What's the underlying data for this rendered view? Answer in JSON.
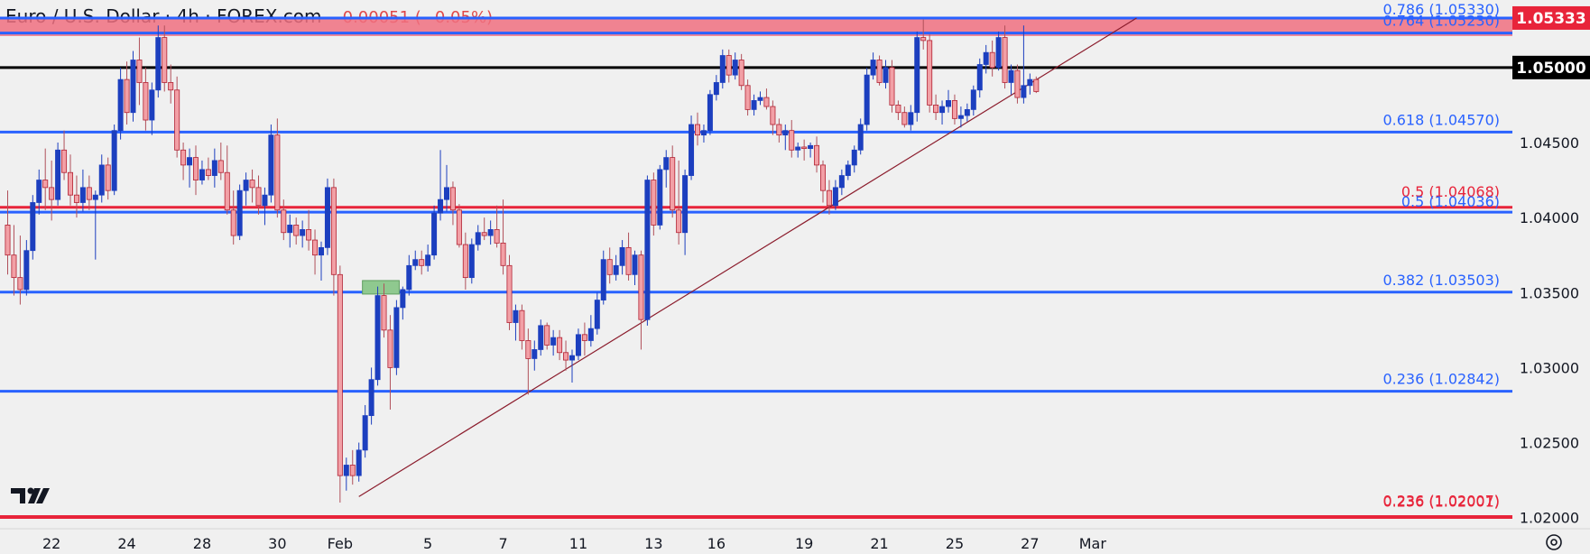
{
  "header": {
    "symbol": "Euro / U.S. Dollar · 4h · FOREX.com",
    "change": "−0.00051 (−0.05%)"
  },
  "colors": {
    "background": "#f0f0f0",
    "up": "#1c3fbf",
    "down": "#f2a0a6",
    "downBorder": "#b22233",
    "fib": "#2962ff",
    "red": "#e8243a",
    "black": "#000000",
    "trend": "#8b1c2c",
    "zone": "#8fc98f"
  },
  "chart_data": {
    "type": "candlestick",
    "timeframe": "4h",
    "ylim": [
      1.0195,
      1.0545
    ],
    "y_ticks": [
      "1.02000",
      "1.02500",
      "1.03000",
      "1.03500",
      "1.04000",
      "1.04500"
    ],
    "x_ticks": [
      {
        "label": "22",
        "i": 7
      },
      {
        "label": "24",
        "i": 19
      },
      {
        "label": "28",
        "i": 31
      },
      {
        "label": "30",
        "i": 43
      },
      {
        "label": "Feb",
        "i": 53
      },
      {
        "label": "5",
        "i": 67
      },
      {
        "label": "7",
        "i": 79
      },
      {
        "label": "11",
        "i": 91
      },
      {
        "label": "13",
        "i": 103
      },
      {
        "label": "16",
        "i": 113
      },
      {
        "label": "19",
        "i": 127
      },
      {
        "label": "21",
        "i": 139
      },
      {
        "label": "25",
        "i": 151
      },
      {
        "label": "27",
        "i": 163
      },
      {
        "label": "Mar",
        "i": 173
      }
    ],
    "horizontal_lines": [
      {
        "label": "0.786 (1.05330)",
        "value": 1.0533,
        "color": "#2962ff"
      },
      {
        "label": "0.764 (1.05230)",
        "value": 1.0523,
        "color": "#2962ff"
      },
      {
        "label": "",
        "value": 1.05,
        "color": "#000000",
        "badge": "1.05000"
      },
      {
        "label": "0.618 (1.04570)",
        "value": 1.0457,
        "color": "#2962ff"
      },
      {
        "label": "0.5 (1.04068)",
        "value": 1.04068,
        "color": "#e8243a"
      },
      {
        "label": "0.5 (1.04036)",
        "value": 1.04036,
        "color": "#2962ff"
      },
      {
        "label": "0.382 (1.03503)",
        "value": 1.03503,
        "color": "#2962ff"
      },
      {
        "label": "0.236 (1.02842)",
        "value": 1.02842,
        "color": "#2962ff"
      },
      {
        "label": "0.236 (1.02007)",
        "value": 1.02007,
        "color": "#e8243a"
      },
      {
        "label": "0.236 (1.02001)",
        "value": 1.02001,
        "color": "#e8243a"
      }
    ],
    "resistance_zone": {
      "from": 1.0521,
      "to": 1.0533,
      "badge": "1.05333"
    },
    "trendline": {
      "i0": 56,
      "p0": 1.0214,
      "i1": 180,
      "p1": 1.0533
    },
    "highlight_box": {
      "i0": 57,
      "i1": 62,
      "p0": 1.0349,
      "p1": 1.0358
    },
    "candles": [
      [
        1.0395,
        1.0418,
        1.0362,
        1.0375
      ],
      [
        1.0375,
        1.0395,
        1.0348,
        1.036
      ],
      [
        1.036,
        1.0388,
        1.0342,
        1.0352
      ],
      [
        1.0352,
        1.0385,
        1.0348,
        1.0378
      ],
      [
        1.0378,
        1.0415,
        1.0372,
        1.041
      ],
      [
        1.041,
        1.0432,
        1.0402,
        1.0425
      ],
      [
        1.0425,
        1.0446,
        1.0405,
        1.042
      ],
      [
        1.042,
        1.0438,
        1.0398,
        1.0412
      ],
      [
        1.0412,
        1.045,
        1.0408,
        1.0445
      ],
      [
        1.0445,
        1.0458,
        1.0425,
        1.043
      ],
      [
        1.043,
        1.0442,
        1.0408,
        1.0415
      ],
      [
        1.0415,
        1.0428,
        1.04,
        1.041
      ],
      [
        1.041,
        1.0432,
        1.0404,
        1.042
      ],
      [
        1.042,
        1.0428,
        1.0405,
        1.0412
      ],
      [
        1.0412,
        1.0418,
        1.0372,
        1.0415
      ],
      [
        1.0415,
        1.0442,
        1.041,
        1.0435
      ],
      [
        1.0435,
        1.044,
        1.0412,
        1.0418
      ],
      [
        1.0418,
        1.0462,
        1.0415,
        1.0458
      ],
      [
        1.0458,
        1.05,
        1.0452,
        1.0492
      ],
      [
        1.0492,
        1.0504,
        1.0462,
        1.047
      ],
      [
        1.047,
        1.0511,
        1.0464,
        1.0505
      ],
      [
        1.0505,
        1.052,
        1.0475,
        1.049
      ],
      [
        1.049,
        1.05,
        1.0458,
        1.0465
      ],
      [
        1.0465,
        1.049,
        1.0455,
        1.0485
      ],
      [
        1.0485,
        1.0528,
        1.048,
        1.052
      ],
      [
        1.052,
        1.0528,
        1.0484,
        1.049
      ],
      [
        1.049,
        1.0502,
        1.0476,
        1.0485
      ],
      [
        1.0485,
        1.0494,
        1.044,
        1.0445
      ],
      [
        1.0445,
        1.045,
        1.0425,
        1.0435
      ],
      [
        1.0435,
        1.0446,
        1.042,
        1.044
      ],
      [
        1.044,
        1.0448,
        1.0415,
        1.0425
      ],
      [
        1.0425,
        1.0438,
        1.0422,
        1.0432
      ],
      [
        1.0432,
        1.044,
        1.0425,
        1.0428
      ],
      [
        1.0428,
        1.0446,
        1.042,
        1.0438
      ],
      [
        1.0438,
        1.045,
        1.0425,
        1.043
      ],
      [
        1.043,
        1.0448,
        1.0402,
        1.0405
      ],
      [
        1.0405,
        1.0418,
        1.0382,
        1.0388
      ],
      [
        1.0388,
        1.0422,
        1.0385,
        1.0418
      ],
      [
        1.0418,
        1.043,
        1.0408,
        1.0425
      ],
      [
        1.0425,
        1.0432,
        1.041,
        1.042
      ],
      [
        1.042,
        1.0428,
        1.0402,
        1.0408
      ],
      [
        1.0408,
        1.042,
        1.0395,
        1.0415
      ],
      [
        1.0415,
        1.0462,
        1.041,
        1.0455
      ],
      [
        1.0455,
        1.0466,
        1.04,
        1.0405
      ],
      [
        1.0405,
        1.0412,
        1.0385,
        1.039
      ],
      [
        1.039,
        1.0402,
        1.038,
        1.0395
      ],
      [
        1.0395,
        1.04,
        1.0382,
        1.0388
      ],
      [
        1.0388,
        1.0398,
        1.038,
        1.0392
      ],
      [
        1.0392,
        1.0405,
        1.0378,
        1.0385
      ],
      [
        1.0385,
        1.0392,
        1.0362,
        1.0375
      ],
      [
        1.0375,
        1.0384,
        1.0358,
        1.038
      ],
      [
        1.038,
        1.0426,
        1.0375,
        1.042
      ],
      [
        1.042,
        1.0426,
        1.0348,
        1.0362
      ],
      [
        1.0362,
        1.0368,
        1.021,
        1.0228
      ],
      [
        1.0228,
        1.024,
        1.0218,
        1.0235
      ],
      [
        1.0235,
        1.0245,
        1.0222,
        1.0228
      ],
      [
        1.0228,
        1.025,
        1.0224,
        1.0245
      ],
      [
        1.0245,
        1.0275,
        1.024,
        1.0268
      ],
      [
        1.0268,
        1.03,
        1.0262,
        1.0292
      ],
      [
        1.0292,
        1.0354,
        1.0288,
        1.0348
      ],
      [
        1.0348,
        1.0356,
        1.032,
        1.0325
      ],
      [
        1.0325,
        1.0335,
        1.0272,
        1.03
      ],
      [
        1.03,
        1.0345,
        1.0295,
        1.034
      ],
      [
        1.034,
        1.0354,
        1.0332,
        1.0352
      ],
      [
        1.0352,
        1.0375,
        1.0348,
        1.0368
      ],
      [
        1.0368,
        1.0378,
        1.0365,
        1.0372
      ],
      [
        1.0372,
        1.0378,
        1.0362,
        1.0368
      ],
      [
        1.0368,
        1.0382,
        1.0364,
        1.0375
      ],
      [
        1.0375,
        1.0408,
        1.0372,
        1.0403
      ],
      [
        1.0403,
        1.0445,
        1.0398,
        1.0412
      ],
      [
        1.0412,
        1.0435,
        1.0404,
        1.042
      ],
      [
        1.042,
        1.0424,
        1.0395,
        1.0405
      ],
      [
        1.0405,
        1.0409,
        1.038,
        1.0382
      ],
      [
        1.0382,
        1.039,
        1.0352,
        1.036
      ],
      [
        1.036,
        1.0386,
        1.0356,
        1.0382
      ],
      [
        1.0382,
        1.0395,
        1.0378,
        1.039
      ],
      [
        1.039,
        1.04,
        1.0385,
        1.0388
      ],
      [
        1.0388,
        1.0398,
        1.0382,
        1.0392
      ],
      [
        1.0392,
        1.0408,
        1.038,
        1.0383
      ],
      [
        1.0383,
        1.0412,
        1.0362,
        1.0368
      ],
      [
        1.0368,
        1.0375,
        1.0325,
        1.033
      ],
      [
        1.033,
        1.0342,
        1.0318,
        1.0338
      ],
      [
        1.0338,
        1.0342,
        1.0312,
        1.0318
      ],
      [
        1.0318,
        1.0326,
        1.0282,
        1.0306
      ],
      [
        1.0306,
        1.0318,
        1.0298,
        1.0312
      ],
      [
        1.0312,
        1.0332,
        1.0308,
        1.0328
      ],
      [
        1.0328,
        1.033,
        1.0312,
        1.0315
      ],
      [
        1.0315,
        1.0325,
        1.0308,
        1.032
      ],
      [
        1.032,
        1.0325,
        1.0305,
        1.031
      ],
      [
        1.031,
        1.0318,
        1.0298,
        1.0305
      ],
      [
        1.0305,
        1.0312,
        1.029,
        1.0308
      ],
      [
        1.0308,
        1.0326,
        1.0305,
        1.0322
      ],
      [
        1.0322,
        1.033,
        1.0308,
        1.0318
      ],
      [
        1.0318,
        1.0335,
        1.0314,
        1.0326
      ],
      [
        1.0326,
        1.035,
        1.0322,
        1.0345
      ],
      [
        1.0345,
        1.0378,
        1.0342,
        1.0372
      ],
      [
        1.0372,
        1.038,
        1.0356,
        1.0362
      ],
      [
        1.0362,
        1.0375,
        1.0358,
        1.0368
      ],
      [
        1.0368,
        1.0385,
        1.0362,
        1.038
      ],
      [
        1.038,
        1.039,
        1.0358,
        1.0362
      ],
      [
        1.0362,
        1.0378,
        1.0355,
        1.0375
      ],
      [
        1.0375,
        1.0378,
        1.0312,
        1.0332
      ],
      [
        1.0332,
        1.0428,
        1.0328,
        1.0425
      ],
      [
        1.0425,
        1.043,
        1.0388,
        1.0395
      ],
      [
        1.0395,
        1.0435,
        1.0392,
        1.0432
      ],
      [
        1.0432,
        1.0445,
        1.042,
        1.044
      ],
      [
        1.044,
        1.0448,
        1.04,
        1.0405
      ],
      [
        1.0405,
        1.0438,
        1.0382,
        1.039
      ],
      [
        1.039,
        1.0432,
        1.0375,
        1.0428
      ],
      [
        1.0428,
        1.0468,
        1.0425,
        1.0462
      ],
      [
        1.0462,
        1.047,
        1.0448,
        1.0455
      ],
      [
        1.0455,
        1.0462,
        1.045,
        1.0458
      ],
      [
        1.0458,
        1.0485,
        1.0455,
        1.0482
      ],
      [
        1.0482,
        1.0495,
        1.0478,
        1.049
      ],
      [
        1.049,
        1.0512,
        1.0486,
        1.0508
      ],
      [
        1.0508,
        1.0512,
        1.049,
        1.0495
      ],
      [
        1.0495,
        1.051,
        1.0492,
        1.0505
      ],
      [
        1.0505,
        1.0509,
        1.0485,
        1.0488
      ],
      [
        1.0488,
        1.0492,
        1.0468,
        1.0472
      ],
      [
        1.0472,
        1.0482,
        1.0468,
        1.0478
      ],
      [
        1.0478,
        1.0484,
        1.0475,
        1.048
      ],
      [
        1.048,
        1.0486,
        1.0472,
        1.0474
      ],
      [
        1.0474,
        1.0478,
        1.0455,
        1.0462
      ],
      [
        1.0462,
        1.0466,
        1.045,
        1.0455
      ],
      [
        1.0455,
        1.0462,
        1.0445,
        1.0458
      ],
      [
        1.0458,
        1.0465,
        1.044,
        1.0445
      ],
      [
        1.0445,
        1.045,
        1.044,
        1.0447
      ],
      [
        1.0447,
        1.0452,
        1.0438,
        1.0446
      ],
      [
        1.0446,
        1.045,
        1.044,
        1.0448
      ],
      [
        1.0448,
        1.0454,
        1.043,
        1.0435
      ],
      [
        1.0435,
        1.0438,
        1.041,
        1.0418
      ],
      [
        1.0418,
        1.0425,
        1.0402,
        1.0408
      ],
      [
        1.0408,
        1.0425,
        1.0405,
        1.042
      ],
      [
        1.042,
        1.0432,
        1.0415,
        1.0428
      ],
      [
        1.0428,
        1.0438,
        1.0425,
        1.0435
      ],
      [
        1.0435,
        1.0448,
        1.043,
        1.0445
      ],
      [
        1.0445,
        1.0466,
        1.0442,
        1.0462
      ],
      [
        1.0462,
        1.05,
        1.0458,
        1.0495
      ],
      [
        1.0495,
        1.051,
        1.0492,
        1.0505
      ],
      [
        1.0505,
        1.0508,
        1.0488,
        1.049
      ],
      [
        1.049,
        1.0505,
        1.0486,
        1.05
      ],
      [
        1.05,
        1.0505,
        1.047,
        1.0475
      ],
      [
        1.0475,
        1.0478,
        1.0465,
        1.047
      ],
      [
        1.047,
        1.0474,
        1.046,
        1.0462
      ],
      [
        1.0462,
        1.0475,
        1.0458,
        1.047
      ],
      [
        1.047,
        1.0524,
        1.0464,
        1.052
      ],
      [
        1.052,
        1.0532,
        1.0512,
        1.0518
      ],
      [
        1.0518,
        1.0522,
        1.047,
        1.0475
      ],
      [
        1.0475,
        1.0482,
        1.0465,
        1.047
      ],
      [
        1.047,
        1.0478,
        1.0462,
        1.0474
      ],
      [
        1.0474,
        1.0485,
        1.047,
        1.0478
      ],
      [
        1.0478,
        1.0482,
        1.0462,
        1.0466
      ],
      [
        1.0466,
        1.0474,
        1.046,
        1.0468
      ],
      [
        1.0468,
        1.0476,
        1.0464,
        1.0472
      ],
      [
        1.0472,
        1.0488,
        1.0468,
        1.0485
      ],
      [
        1.0485,
        1.0506,
        1.048,
        1.0502
      ],
      [
        1.0502,
        1.0515,
        1.0496,
        1.051
      ],
      [
        1.051,
        1.0518,
        1.0494,
        1.05
      ],
      [
        1.05,
        1.0524,
        1.0498,
        1.052
      ],
      [
        1.052,
        1.0528,
        1.0486,
        1.049
      ],
      [
        1.049,
        1.0502,
        1.0482,
        1.0498
      ],
      [
        1.0498,
        1.0502,
        1.0476,
        1.048
      ],
      [
        1.048,
        1.0528,
        1.0476,
        1.0488
      ],
      [
        1.0488,
        1.0496,
        1.0482,
        1.0492
      ],
      [
        1.0492,
        1.0494,
        1.0483,
        1.0484
      ]
    ]
  }
}
